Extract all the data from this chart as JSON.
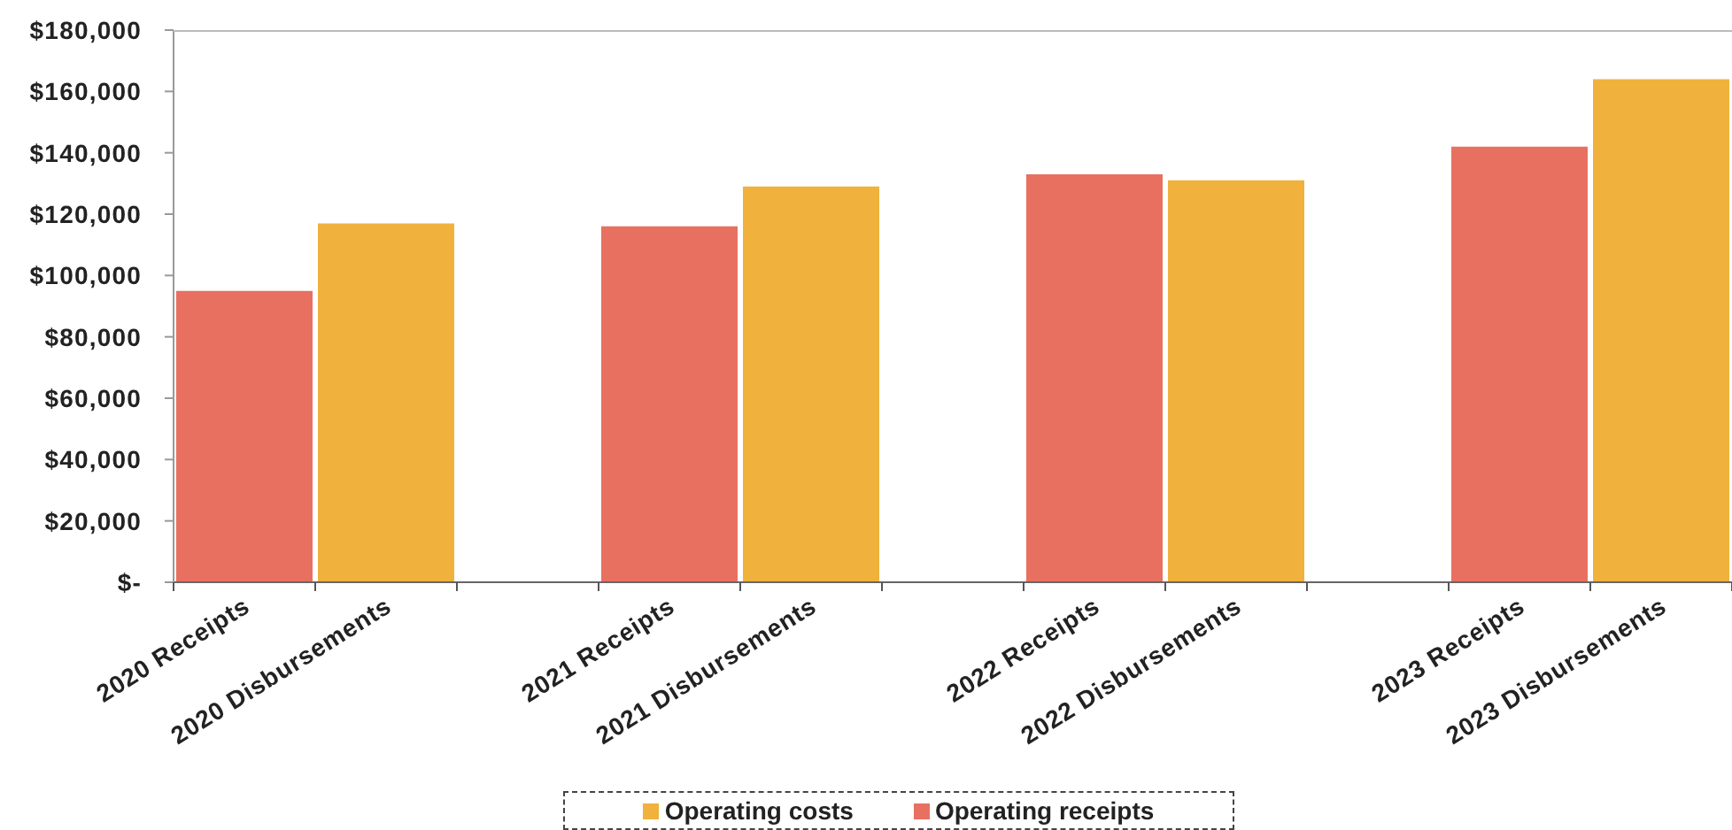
{
  "chart_data": {
    "type": "bar",
    "stacked": true,
    "categories": [
      "2020 Receipts",
      "2020 Disbursements",
      null,
      "2021 Receipts",
      "2021 Disbursements",
      null,
      "2022 Receipts",
      "2022 Disbursements",
      null,
      "2023 Receipts",
      "2023 Disbursements"
    ],
    "series": [
      {
        "name": "Operating costs",
        "color": "#f0b23c",
        "values": [
          null,
          117000,
          null,
          null,
          129000,
          null,
          null,
          131000,
          null,
          null,
          164000
        ]
      },
      {
        "name": "Operating receipts",
        "color": "#e87060",
        "values": [
          95000,
          null,
          null,
          116000,
          null,
          null,
          133000,
          null,
          null,
          142000,
          null
        ]
      }
    ],
    "ylim": [
      0,
      180000
    ],
    "yticks": [
      {
        "value": 0,
        "label": "$-"
      },
      {
        "value": 20000,
        "label": "$20,000"
      },
      {
        "value": 40000,
        "label": "$40,000"
      },
      {
        "value": 60000,
        "label": "$60,000"
      },
      {
        "value": 80000,
        "label": "$80,000"
      },
      {
        "value": 100000,
        "label": "$100,000"
      },
      {
        "value": 120000,
        "label": "$120,000"
      },
      {
        "value": 140000,
        "label": "$140,000"
      },
      {
        "value": 160000,
        "label": "$160,000"
      },
      {
        "value": 180000,
        "label": "$180,000"
      }
    ],
    "grid": false,
    "legend": "bottom"
  }
}
